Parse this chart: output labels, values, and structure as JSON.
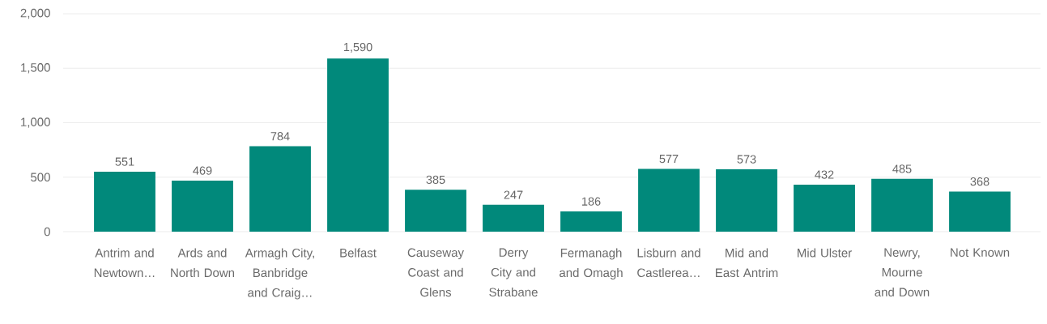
{
  "chart_data": {
    "type": "bar",
    "categories": [
      "Antrim and Newtown…",
      "Ards and North Down",
      "Armagh City, Banbridge and Craig…",
      "Belfast",
      "Causeway Coast and Glens",
      "Derry City and Strabane",
      "Fermanagh and Omagh",
      "Lisburn and Castlerea…",
      "Mid and East Antrim",
      "Mid Ulster",
      "Newry, Mourne and Down",
      "Not Known"
    ],
    "values": [
      551,
      469,
      784,
      1590,
      385,
      247,
      186,
      577,
      573,
      432,
      485,
      368
    ],
    "value_labels": [
      "551",
      "469",
      "784",
      "1,590",
      "385",
      "247",
      "186",
      "577",
      "573",
      "432",
      "485",
      "368"
    ],
    "color": "#01897b",
    "ylim": [
      0,
      2000
    ],
    "yticks": [
      0,
      500,
      {
        "value": 1000,
        "label": "1,000"
      },
      {
        "value": 1500,
        "label": "1,500"
      },
      {
        "value": 2000,
        "label": "2,000"
      }
    ],
    "grid": "y"
  }
}
